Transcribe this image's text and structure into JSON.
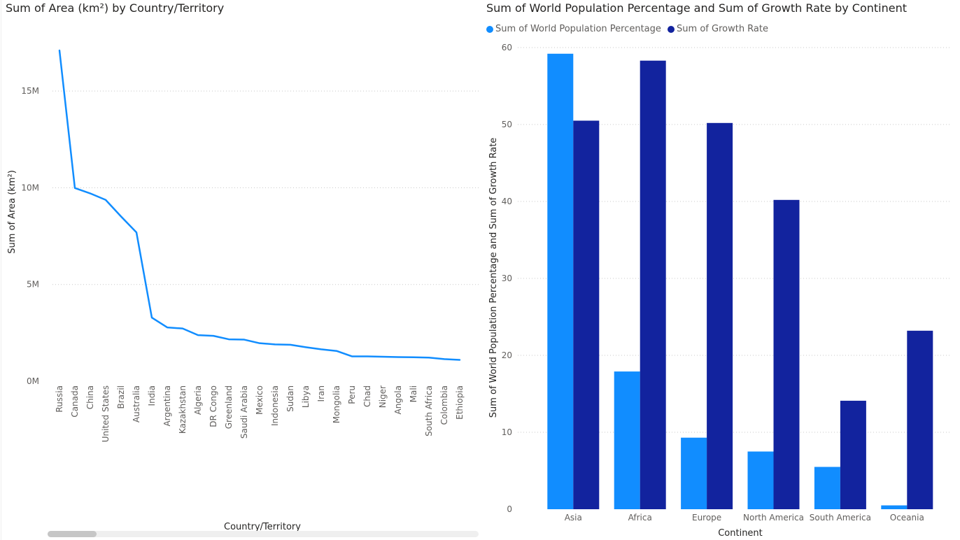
{
  "chart_data": [
    {
      "type": "line",
      "title": "Sum of Area (km²) by Country/Territory",
      "xlabel": "Country/Territory",
      "ylabel": "Sum of Area (km²)",
      "categories": [
        "Russia",
        "Canada",
        "China",
        "United States",
        "Brazil",
        "Australia",
        "India",
        "Argentina",
        "Kazakhstan",
        "Algeria",
        "DR Congo",
        "Greenland",
        "Saudi Arabia",
        "Mexico",
        "Indonesia",
        "Sudan",
        "Libya",
        "Iran",
        "Mongolia",
        "Peru",
        "Chad",
        "Niger",
        "Angola",
        "Mali",
        "South Africa",
        "Colombia",
        "Ethiopia"
      ],
      "values": [
        17098242,
        9984670,
        9706961,
        9372610,
        8515767,
        7692024,
        3287590,
        2780400,
        2724900,
        2381741,
        2344858,
        2166086,
        2149690,
        1964375,
        1904569,
        1886068,
        1759540,
        1648195,
        1564110,
        1285216,
        1284000,
        1267000,
        1246700,
        1240192,
        1221037,
        1141748,
        1104300
      ],
      "ylim": [
        0,
        17500000
      ],
      "yticks": [
        0,
        5000000,
        10000000,
        15000000
      ],
      "ytick_labels": [
        "0M",
        "5M",
        "10M",
        "15M"
      ],
      "grid": true,
      "color": "#118dff"
    },
    {
      "type": "bar",
      "title": "Sum of World Population Percentage and Sum of Growth Rate by Continent",
      "xlabel": "Continent",
      "ylabel": "Sum of World Population Percentage and Sum of Growth Rate",
      "categories": [
        "Asia",
        "Africa",
        "Europe",
        "North America",
        "South America",
        "Oceania"
      ],
      "series": [
        {
          "name": "Sum of World Population Percentage",
          "values": [
            59.2,
            17.9,
            9.3,
            7.5,
            5.5,
            0.5
          ],
          "color": "#118dff"
        },
        {
          "name": "Sum of Growth Rate",
          "values": [
            50.5,
            58.3,
            50.2,
            40.2,
            14.1,
            23.2
          ],
          "color": "#12239e"
        }
      ],
      "ylim": [
        0,
        60
      ],
      "yticks": [
        0,
        10,
        20,
        30,
        40,
        50,
        60
      ],
      "legend": "top-left",
      "grid": true
    }
  ]
}
